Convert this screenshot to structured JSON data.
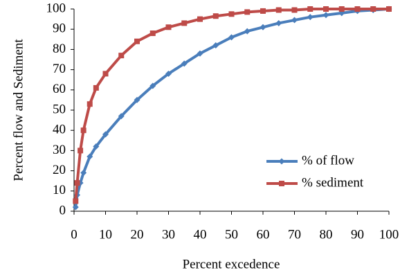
{
  "chart_data": {
    "type": "line",
    "x_label": "Percent excedence",
    "y_label": "Percent  flow and Sediment",
    "x": [
      0.5,
      1,
      2,
      3,
      5,
      7,
      10,
      15,
      20,
      25,
      30,
      35,
      40,
      45,
      50,
      55,
      60,
      65,
      70,
      75,
      80,
      85,
      90,
      95,
      100
    ],
    "series": [
      {
        "name": "% of flow",
        "color": "#4a7ebb",
        "marker": "diamond",
        "values": [
          2,
          8,
          14,
          19,
          27,
          32,
          38,
          47,
          55,
          62,
          68,
          73,
          78,
          82,
          86,
          89,
          91,
          93,
          94.5,
          96,
          97,
          98,
          99,
          99.5,
          100
        ]
      },
      {
        "name": "% sediment",
        "color": "#be4b48",
        "marker": "square",
        "values": [
          5,
          14,
          30,
          40,
          53,
          61,
          68,
          77,
          84,
          88,
          91,
          93,
          95,
          96.5,
          97.5,
          98.5,
          99,
          99.5,
          99.5,
          100,
          100,
          100,
          100,
          100,
          100
        ]
      }
    ],
    "xlim": [
      0,
      100
    ],
    "xticks": [
      0,
      10,
      20,
      30,
      40,
      50,
      60,
      70,
      80,
      90,
      100
    ],
    "ylim": [
      0,
      100
    ],
    "yticks": [
      0,
      10,
      20,
      30,
      40,
      50,
      60,
      70,
      80,
      90,
      100
    ],
    "legend": "right"
  }
}
